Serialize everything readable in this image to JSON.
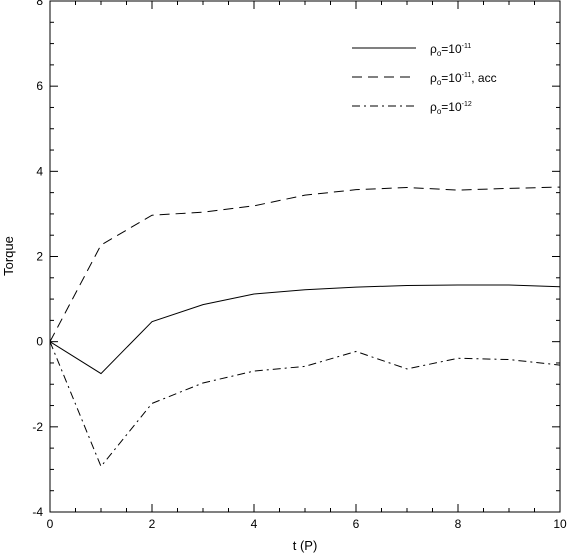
{
  "chart_data": {
    "type": "line",
    "xlabel": "t (P)",
    "ylabel": "Torque",
    "xlim": [
      0,
      10
    ],
    "ylim": [
      -4,
      8
    ],
    "xticks": [
      0,
      2,
      4,
      6,
      8,
      10
    ],
    "yticks": [
      -4,
      -2,
      0,
      2,
      4,
      6,
      8
    ],
    "x_minor_step": 0.5,
    "y_minor_step": 0.5,
    "grid": false,
    "legend_position": "top-right",
    "series": [
      {
        "name": "ρo=10⁻¹¹",
        "legend_main": "ρ",
        "legend_sub": "o",
        "legend_mid": "=10",
        "legend_sup": "-11",
        "legend_tail": "",
        "style": "solid",
        "x": [
          0,
          1,
          2,
          3,
          4,
          5,
          6,
          7,
          8,
          9,
          10
        ],
        "y": [
          0.0,
          -0.75,
          0.47,
          0.87,
          1.12,
          1.22,
          1.28,
          1.32,
          1.33,
          1.33,
          1.29
        ]
      },
      {
        "name": "ρo=10⁻¹¹, acc",
        "legend_main": "ρ",
        "legend_sub": "o",
        "legend_mid": "=10",
        "legend_sup": "-11",
        "legend_tail": ", acc",
        "style": "dashed",
        "x": [
          0,
          1,
          2,
          3,
          4,
          5,
          6,
          7,
          8,
          9,
          10
        ],
        "y": [
          0.0,
          2.27,
          2.97,
          3.04,
          3.19,
          3.44,
          3.57,
          3.62,
          3.56,
          3.6,
          3.63
        ]
      },
      {
        "name": "ρo=10⁻¹²",
        "legend_main": "ρ",
        "legend_sub": "o",
        "legend_mid": "=10",
        "legend_sup": "-12",
        "legend_tail": "",
        "style": "dashdot",
        "x": [
          0,
          1,
          2,
          3,
          4,
          5,
          6,
          7,
          8,
          9,
          10
        ],
        "y": [
          0.0,
          -2.93,
          -1.45,
          -0.97,
          -0.69,
          -0.58,
          -0.23,
          -0.64,
          -0.39,
          -0.42,
          -0.55
        ]
      }
    ]
  }
}
